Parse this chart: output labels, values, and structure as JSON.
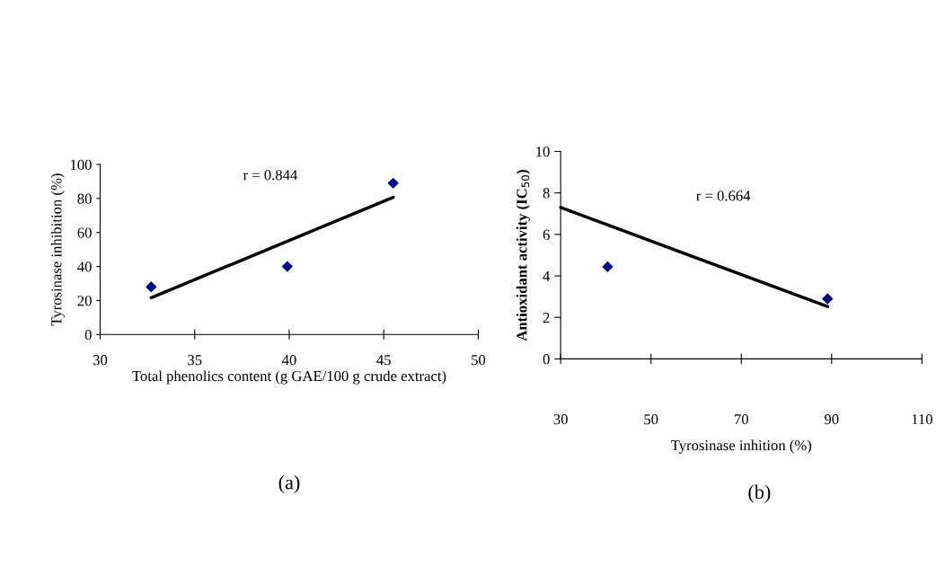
{
  "chart_data": [
    {
      "type": "scatter",
      "xlabel": "Total phenolics content (g GAE/100 g crude extract)",
      "ylabel": "Tyrosinase inhibition (%)",
      "xlim": [
        30,
        50
      ],
      "xticks": [
        30,
        35,
        40,
        45,
        50
      ],
      "ylim": [
        0,
        100
      ],
      "yticks": [
        0,
        20,
        40,
        60,
        80,
        100
      ],
      "grid": false,
      "legend": false,
      "series": [
        {
          "marker": "diamond",
          "color": "#00008b",
          "x": [
            32.7,
            39.9,
            45.5
          ],
          "values": [
            28,
            40,
            89
          ]
        },
        {
          "type": "line",
          "color": "#000000",
          "x": [
            32.7,
            45.5
          ],
          "values": [
            21.6,
            80.7
          ]
        }
      ],
      "annotations": [
        "r = 0.844",
        "(a)"
      ]
    },
    {
      "type": "scatter",
      "xlabel": "Tyrosinase inhition (%)",
      "ylabel": "Antioxidant activity (IC$_{50}$)",
      "xlim": [
        30,
        110
      ],
      "xticks": [
        30,
        50,
        70,
        90,
        110
      ],
      "ylim": [
        0,
        10
      ],
      "yticks": [
        0,
        2,
        4,
        6,
        8,
        10
      ],
      "grid": false,
      "legend": false,
      "series": [
        {
          "marker": "diamond",
          "color": "#00008b",
          "x": [
            40.4,
            89.1
          ],
          "values": [
            4.44,
            2.9
          ]
        },
        {
          "type": "line",
          "color": "#000000",
          "x": [
            30,
            89.1
          ],
          "values": [
            7.3,
            2.52
          ]
        }
      ],
      "annotations": [
        "r = 0.664",
        "(b)"
      ]
    }
  ]
}
